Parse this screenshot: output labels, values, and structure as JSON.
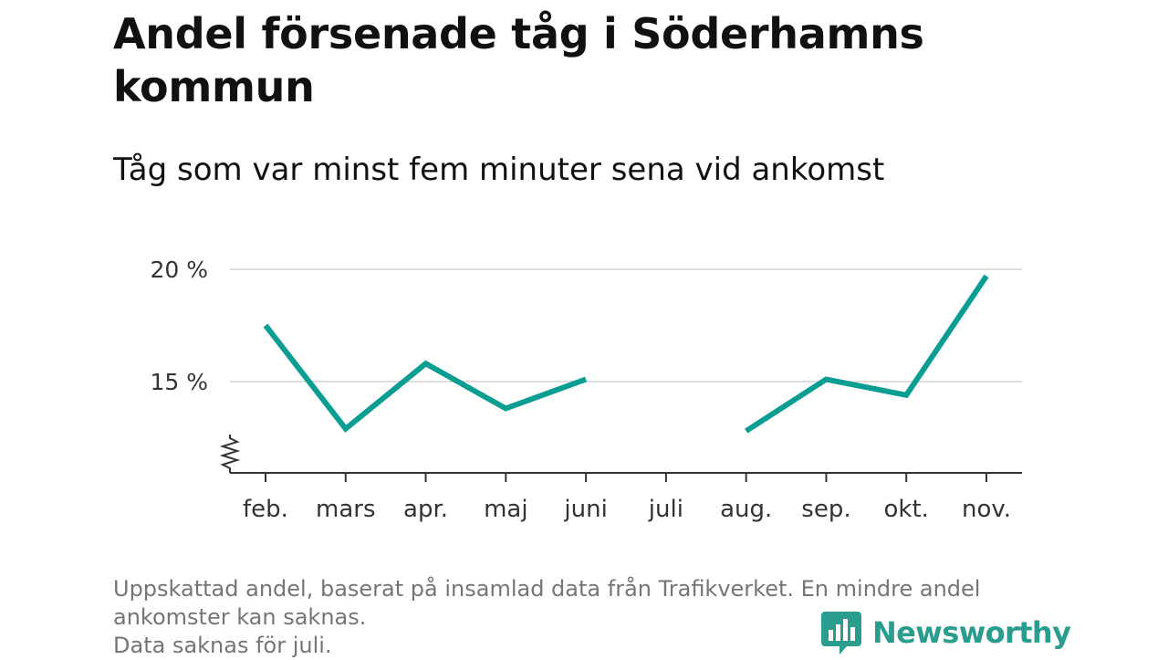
{
  "title": "Andel försenade tåg i Söderhamns kommun",
  "subtitle": "Tåg som var minst fem minuter sena vid ankomst",
  "footnote": {
    "line1": "Uppskattad andel, baserat på insamlad data från Trafikverket. En mindre andel",
    "line2": "ankomster kan saknas.",
    "line3": "Data saknas för juli."
  },
  "brand": {
    "name": "Newsworthy",
    "icon": "newsworthy-logo-icon"
  },
  "colors": {
    "series": "#0a9e93",
    "grid": "#dddddd",
    "axis": "#333333",
    "brand": "#2a9d8f"
  },
  "chart_data": {
    "type": "line",
    "x": [
      "feb.",
      "mars",
      "apr.",
      "maj",
      "juni",
      "juli",
      "aug.",
      "sep.",
      "okt.",
      "nov."
    ],
    "series": [
      {
        "values": [
          17.5,
          12.9,
          15.8,
          13.8,
          15.1,
          null,
          12.8,
          15.1,
          14.4,
          19.7
        ]
      }
    ],
    "y_ticks": [
      {
        "value": 15,
        "label": "15 %"
      },
      {
        "value": 20,
        "label": "20 %"
      }
    ],
    "ylim": [
      11,
      20
    ],
    "y_axis_break": true,
    "grid": true,
    "legend": "none"
  }
}
